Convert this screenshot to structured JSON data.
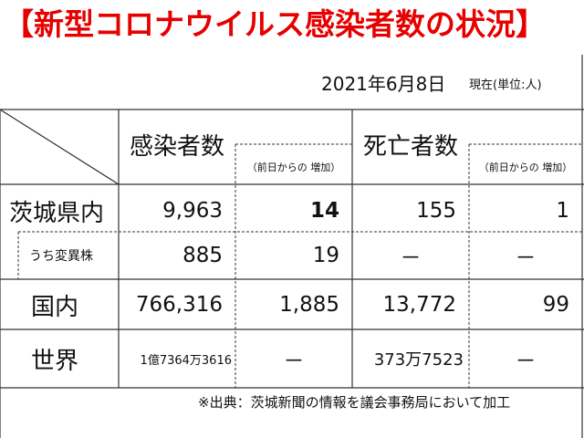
{
  "title": "【新型コロナウイルス感染者数の状況】",
  "date": "2021年6月8日",
  "unit_note": "現在(単位:人)",
  "headers": {
    "infected": "感染者数",
    "infected_increase": "（前日からの 増加）",
    "deaths": "死亡者数",
    "deaths_increase": "（前日からの 増加）"
  },
  "rows": [
    {
      "label": "茨城県内",
      "infected": "9,963",
      "infected_increase": "14",
      "deaths": "155",
      "deaths_increase": "1"
    },
    {
      "label": "うち変異株",
      "infected": "885",
      "infected_increase": "19",
      "deaths": "－",
      "deaths_increase": "－"
    },
    {
      "label": "国内",
      "infected": "766,316",
      "infected_increase": "1,885",
      "deaths": "13,772",
      "deaths_increase": "99"
    },
    {
      "label": "世界",
      "infected": "1億7364万3616",
      "infected_increase": "－",
      "deaths": "373万7523",
      "deaths_increase": "－"
    }
  ],
  "source_note": "※出典：茨城新聞の情報を議会事務局において加工"
}
